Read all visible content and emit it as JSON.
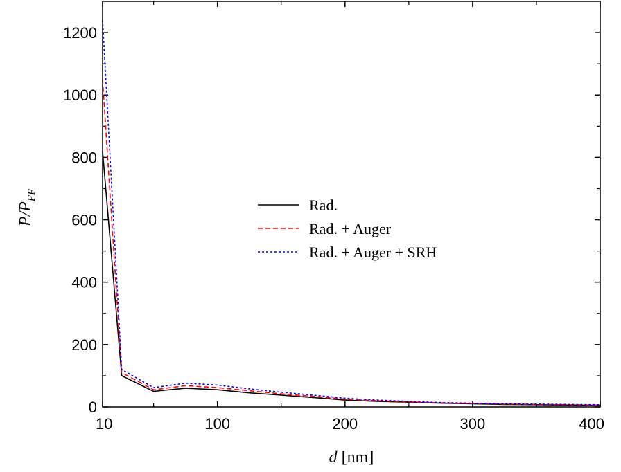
{
  "chart_data": {
    "type": "line",
    "xlabel": {
      "var": "d",
      "unit": " [nm]"
    },
    "ylabel": {
      "main": "P/P",
      "sub": "FF"
    },
    "xlim": [
      10,
      400
    ],
    "ylim": [
      0,
      1300
    ],
    "xticks": [
      10,
      100,
      200,
      300,
      400
    ],
    "yticks": [
      0,
      200,
      400,
      600,
      800,
      1000,
      1200
    ],
    "legend_position": "center-right",
    "x": [
      10,
      25,
      50,
      75,
      100,
      125,
      150,
      175,
      200,
      225,
      250,
      275,
      300,
      325,
      350,
      375,
      400
    ],
    "series": [
      {
        "name": "Rad.",
        "color": "#000000",
        "dash": "solid",
        "values": [
          820,
          100,
          50,
          60,
          55,
          45,
          38,
          30,
          22,
          18,
          15,
          12,
          10,
          8,
          7,
          6,
          5
        ]
      },
      {
        "name": "Rad. + Auger",
        "color": "#ff0000",
        "dash": "dashed",
        "values": [
          1050,
          110,
          55,
          68,
          62,
          52,
          42,
          34,
          25,
          20,
          16,
          13,
          11,
          9,
          8,
          7,
          6
        ]
      },
      {
        "name": "Rad. + Auger + SRH",
        "color": "#0000ff",
        "dash": "dotted",
        "values": [
          1240,
          120,
          62,
          76,
          70,
          58,
          47,
          38,
          28,
          22,
          18,
          14,
          12,
          10,
          9,
          8,
          7
        ]
      }
    ]
  }
}
